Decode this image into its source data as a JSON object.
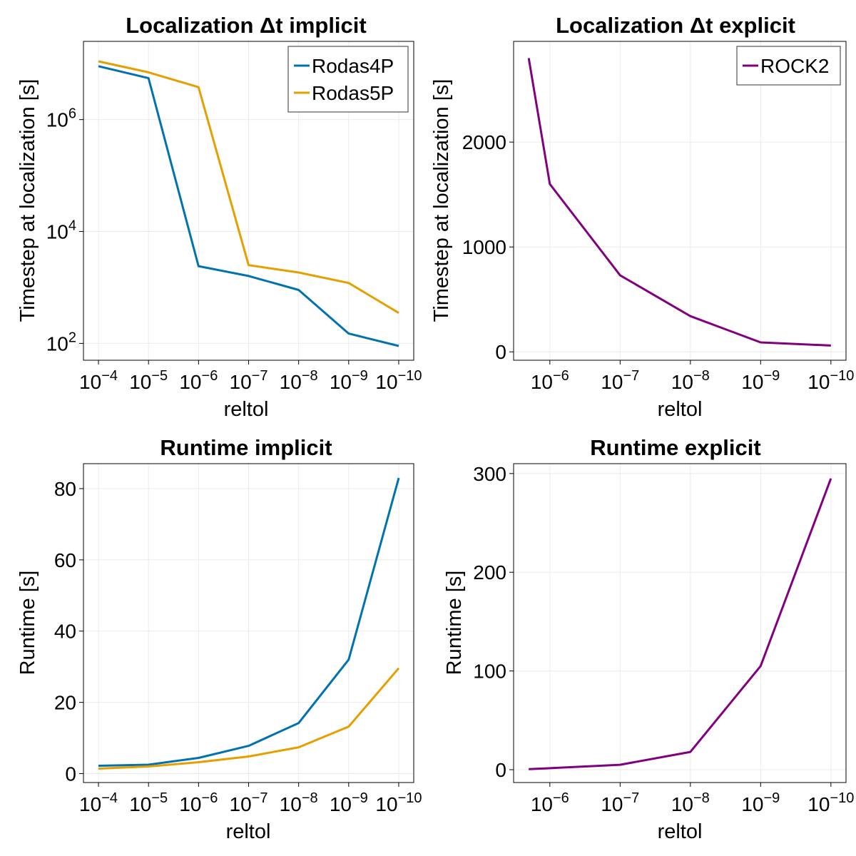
{
  "chart_data": [
    {
      "type": "line",
      "title": "Localization Δt implicit",
      "xlabel": "reltol",
      "ylabel": "Timestep at localization [s]",
      "xscale": "log",
      "yscale": "log",
      "x_ticks": [
        "10^-4",
        "10^-5",
        "10^-6",
        "10^-7",
        "10^-8",
        "10^-9",
        "10^-10"
      ],
      "y_ticks": [
        "10^2",
        "10^4",
        "10^6"
      ],
      "x": [
        0.0001,
        1e-05,
        1e-06,
        1e-07,
        1e-08,
        1e-09,
        1e-10
      ],
      "ylim": [
        50,
        25000000
      ],
      "grid": true,
      "legend_position": "top-right",
      "series": [
        {
          "name": "Rodas4P",
          "color": "#0072b2",
          "values": [
            9000000,
            5500000,
            2400,
            1600,
            900,
            150,
            90
          ]
        },
        {
          "name": "Rodas5P",
          "color": "#e69f00",
          "values": [
            11000000,
            7000000,
            3800000,
            2500,
            1850,
            1200,
            350
          ]
        }
      ]
    },
    {
      "type": "line",
      "title": "Localization Δt explicit",
      "xlabel": "reltol",
      "ylabel": "Timestep at localization [s]",
      "xscale": "log",
      "yscale": "linear",
      "x_ticks": [
        "10^-6",
        "10^-7",
        "10^-8",
        "10^-9",
        "10^-10"
      ],
      "y_ticks": [
        "0",
        "1000",
        "2000"
      ],
      "x": [
        2e-06,
        1e-06,
        1e-07,
        1e-08,
        1e-09,
        1e-10
      ],
      "ylim": [
        -80,
        2960
      ],
      "grid": true,
      "legend_position": "top-right",
      "series": [
        {
          "name": "ROCK2",
          "color": "#800080",
          "values": [
            2800,
            1600,
            730,
            340,
            90,
            60
          ]
        }
      ]
    },
    {
      "type": "line",
      "title": "Runtime implicit",
      "xlabel": "reltol",
      "ylabel": "Runtime [s]",
      "xscale": "log",
      "yscale": "linear",
      "x_ticks": [
        "10^-4",
        "10^-5",
        "10^-6",
        "10^-7",
        "10^-8",
        "10^-9",
        "10^-10"
      ],
      "y_ticks": [
        "0",
        "20",
        "40",
        "60",
        "80"
      ],
      "x": [
        0.0001,
        1e-05,
        1e-06,
        1e-07,
        1e-08,
        1e-09,
        1e-10
      ],
      "ylim": [
        -2.5,
        87
      ],
      "grid": true,
      "legend_position": "none",
      "series": [
        {
          "color": "#0072b2",
          "values": [
            2.2,
            2.5,
            4.4,
            7.8,
            14.2,
            32,
            83
          ]
        },
        {
          "color": "#e69f00",
          "values": [
            1.4,
            2.0,
            3.2,
            4.8,
            7.4,
            13.2,
            29.6
          ]
        }
      ]
    },
    {
      "type": "line",
      "title": "Runtime explicit",
      "xlabel": "reltol",
      "ylabel": "Runtime [s]",
      "xscale": "log",
      "yscale": "linear",
      "x_ticks": [
        "10^-6",
        "10^-7",
        "10^-8",
        "10^-9",
        "10^-10"
      ],
      "y_ticks": [
        "0",
        "100",
        "200",
        "300"
      ],
      "x": [
        2e-06,
        1e-06,
        1e-07,
        1e-08,
        1e-09,
        1e-10
      ],
      "ylim": [
        -13,
        310
      ],
      "grid": true,
      "legend_position": "none",
      "series": [
        {
          "color": "#800080",
          "values": [
            0.5,
            1.5,
            5,
            18,
            105,
            295
          ]
        }
      ]
    }
  ]
}
